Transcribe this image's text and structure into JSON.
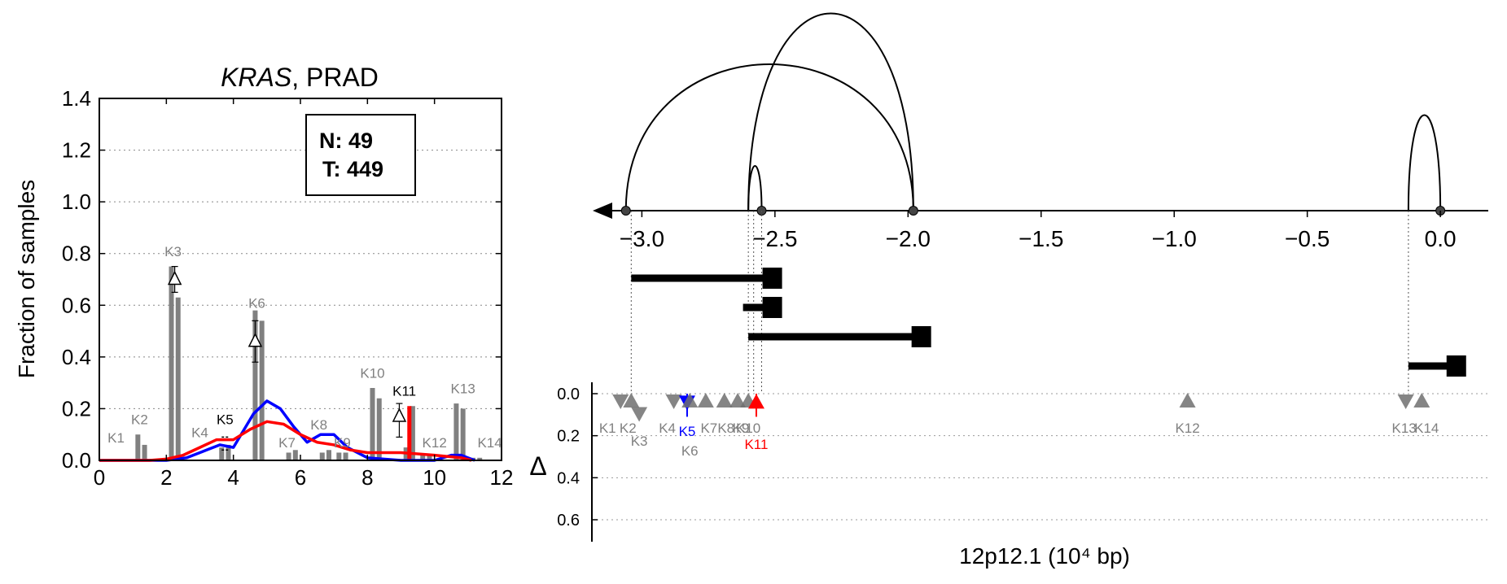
{
  "chart_data": [
    {
      "type": "bar",
      "title_gene": "KRAS",
      "title_rest": ", PRAD",
      "ylabel": "Fraction of samples",
      "xlim": [
        0,
        12
      ],
      "ylim": [
        0,
        1.4
      ],
      "xticks": [
        "0",
        "2",
        "4",
        "6",
        "8",
        "10",
        "12"
      ],
      "yticks": [
        "0.0",
        "0.2",
        "0.4",
        "0.6",
        "0.8",
        "1.0",
        "1.2",
        "1.4"
      ],
      "counts": {
        "n_label": "N: 49",
        "t_label": "T: 449"
      },
      "bars": [
        {
          "x": 1.15,
          "value": 0.1
        },
        {
          "x": 1.35,
          "value": 0.06
        },
        {
          "x": 2.15,
          "value": 0.75
        },
        {
          "x": 2.35,
          "value": 0.63
        },
        {
          "x": 3.65,
          "value": 0.05
        },
        {
          "x": 3.85,
          "value": 0.06
        },
        {
          "x": 4.65,
          "value": 0.58
        },
        {
          "x": 4.85,
          "value": 0.54
        },
        {
          "x": 5.65,
          "value": 0.03
        },
        {
          "x": 5.85,
          "value": 0.04
        },
        {
          "x": 6.65,
          "value": 0.03
        },
        {
          "x": 6.85,
          "value": 0.04
        },
        {
          "x": 7.15,
          "value": 0.03
        },
        {
          "x": 7.35,
          "value": 0.03
        },
        {
          "x": 8.15,
          "value": 0.28
        },
        {
          "x": 8.35,
          "value": 0.24
        },
        {
          "x": 9.15,
          "value": 0.05
        },
        {
          "x": 9.35,
          "value": 0.21
        },
        {
          "x": 9.65,
          "value": 0.02
        },
        {
          "x": 9.85,
          "value": 0.02
        },
        {
          "x": 10.65,
          "value": 0.22
        },
        {
          "x": 10.85,
          "value": 0.2
        },
        {
          "x": 11.15,
          "value": 0.01
        },
        {
          "x": 11.35,
          "value": 0.01
        }
      ],
      "exon_labels": [
        {
          "label": "K1",
          "x": 0.5,
          "y": 0.07,
          "color": "#808080"
        },
        {
          "label": "K2",
          "x": 1.2,
          "y": 0.14,
          "color": "#808080"
        },
        {
          "label": "K3",
          "x": 2.2,
          "y": 0.79,
          "color": "#808080"
        },
        {
          "label": "K4",
          "x": 3.0,
          "y": 0.09,
          "color": "#808080"
        },
        {
          "label": "K5",
          "x": 3.75,
          "y": 0.14,
          "color": "#000000"
        },
        {
          "label": "K6",
          "x": 4.7,
          "y": 0.59,
          "color": "#808080"
        },
        {
          "label": "K7",
          "x": 5.6,
          "y": 0.05,
          "color": "#808080"
        },
        {
          "label": "K8",
          "x": 6.55,
          "y": 0.12,
          "color": "#808080"
        },
        {
          "label": "K9",
          "x": 7.25,
          "y": 0.05,
          "color": "#808080"
        },
        {
          "label": "K10",
          "x": 8.15,
          "y": 0.32,
          "color": "#808080"
        },
        {
          "label": "K11",
          "x": 9.1,
          "y": 0.25,
          "color": "#000000"
        },
        {
          "label": "K12",
          "x": 10.0,
          "y": 0.05,
          "color": "#808080"
        },
        {
          "label": "K13",
          "x": 10.85,
          "y": 0.26,
          "color": "#808080"
        },
        {
          "label": "K14",
          "x": 11.65,
          "y": 0.05,
          "color": "#808080"
        }
      ],
      "deltas": [
        {
          "x": 2.25,
          "y": 0.7,
          "err": [
            0.65,
            0.75
          ]
        },
        {
          "x": 4.65,
          "y": 0.46,
          "err": [
            0.38,
            0.54
          ]
        },
        {
          "x": 8.95,
          "y": 0.17,
          "err": [
            0.09,
            0.22
          ]
        }
      ],
      "series": [
        {
          "color": "#0000ff",
          "x": [
            0.0,
            2.0,
            2.6,
            3.0,
            3.6,
            4.0,
            4.6,
            5.0,
            5.4,
            5.8,
            6.2,
            6.6,
            7.0,
            7.4,
            8.0,
            9.0,
            10.0,
            10.5,
            10.8,
            11.0,
            11.2
          ],
          "y": [
            0.0,
            0.0,
            0.01,
            0.03,
            0.06,
            0.05,
            0.18,
            0.23,
            0.2,
            0.13,
            0.07,
            0.1,
            0.1,
            0.05,
            0.01,
            0.0,
            0.0,
            0.02,
            0.02,
            0.01,
            0.0
          ]
        },
        {
          "color": "#ff0000",
          "x": [
            0.0,
            1.5,
            2.0,
            2.5,
            3.0,
            3.5,
            4.0,
            4.5,
            5.0,
            5.5,
            6.0,
            6.5,
            7.0,
            7.5,
            8.0,
            9.0,
            10.0,
            10.8,
            11.1
          ],
          "y": [
            0.0,
            0.0,
            0.005,
            0.02,
            0.05,
            0.08,
            0.08,
            0.12,
            0.15,
            0.14,
            0.1,
            0.07,
            0.06,
            0.04,
            0.03,
            0.03,
            0.02,
            0.01,
            0.0
          ]
        }
      ],
      "highlight_bar": {
        "x": 9.25,
        "value": 0.21,
        "color": "#ff0000"
      }
    },
    {
      "type": "scatter",
      "xlabel": "12p12.1 (10⁴ bp)",
      "ylabel": "Δ",
      "xlim": [
        -3.2,
        0.18
      ],
      "xticks": [
        "−3.0",
        "−2.5",
        "−2.0",
        "−1.5",
        "−1.0",
        "−0.5",
        "0.0"
      ],
      "ylim": [
        0.0,
        0.7
      ],
      "yticks": [
        "0.0",
        "0.2",
        "0.4",
        "0.6"
      ],
      "arcs": [
        {
          "from": -3.06,
          "to": -1.98,
          "height": 0.72
        },
        {
          "from": -2.6,
          "to": -1.98,
          "height": 0.97
        },
        {
          "from": -2.6,
          "to": -2.55,
          "height": 0.22
        },
        {
          "from": -0.12,
          "to": 0.0,
          "height": 0.47
        }
      ],
      "transcripts": [
        {
          "start": -3.04,
          "end": -2.51,
          "row": 0
        },
        {
          "start": -2.62,
          "end": -2.51,
          "row": 1
        },
        {
          "start": -2.6,
          "end": -1.95,
          "row": 2
        },
        {
          "start": -0.12,
          "end": 0.06,
          "row": 3
        }
      ],
      "markers": [
        {
          "label": "K1",
          "x": -3.08,
          "y": 0.035,
          "dir": "down",
          "color": "#808080"
        },
        {
          "label": "K2",
          "x": -3.04,
          "y": 0.035,
          "dir": "up",
          "color": "#808080"
        },
        {
          "label": "K3",
          "x": -3.01,
          "y": 0.095,
          "dir": "down",
          "color": "#808080"
        },
        {
          "label": "K4",
          "x": -2.88,
          "y": 0.035,
          "dir": "down",
          "color": "#808080"
        },
        {
          "label": "K5",
          "x": -2.83,
          "y": 0.04,
          "dir": "down",
          "color": "#0000ff"
        },
        {
          "label": "K6",
          "x": -2.82,
          "y": 0.035,
          "dir": "up",
          "color": "#808080"
        },
        {
          "label": "K7",
          "x": -2.76,
          "y": 0.035,
          "dir": "up",
          "color": "#808080"
        },
        {
          "label": "K8",
          "x": -2.69,
          "y": 0.035,
          "dir": "up",
          "color": "#808080"
        },
        {
          "label": "K9",
          "x": -2.64,
          "y": 0.035,
          "dir": "up",
          "color": "#808080"
        },
        {
          "label": "K10",
          "x": -2.6,
          "y": 0.035,
          "dir": "up",
          "color": "#808080"
        },
        {
          "label": "K11",
          "x": -2.57,
          "y": 0.04,
          "dir": "up",
          "color": "#ff0000"
        },
        {
          "label": "K12",
          "x": -0.95,
          "y": 0.035,
          "dir": "up",
          "color": "#808080"
        },
        {
          "label": "K13",
          "x": -0.13,
          "y": 0.035,
          "dir": "down",
          "color": "#808080"
        },
        {
          "label": "K14",
          "x": -0.07,
          "y": 0.035,
          "dir": "up",
          "color": "#808080"
        }
      ]
    }
  ]
}
